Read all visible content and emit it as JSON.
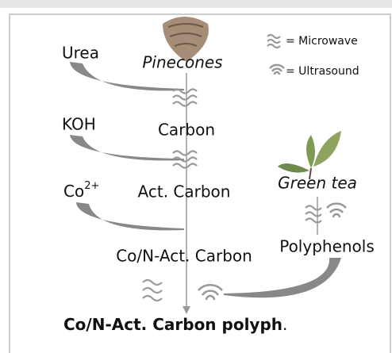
{
  "legend": {
    "microwave": "= Microwave",
    "ultrasound": "= Ultrasound"
  },
  "reagents": [
    {
      "label": "Urea"
    },
    {
      "label": "KOH"
    },
    {
      "label": "Co",
      "superscript": "2+"
    }
  ],
  "nodes": [
    "Pinecones",
    "Carbon",
    "Act. Carbon",
    "Co/N-Act. Carbon",
    "Green tea",
    "Polyphenols"
  ],
  "product": {
    "bold": "Co/N-Act. Carbon polyph",
    "rest": "."
  }
}
